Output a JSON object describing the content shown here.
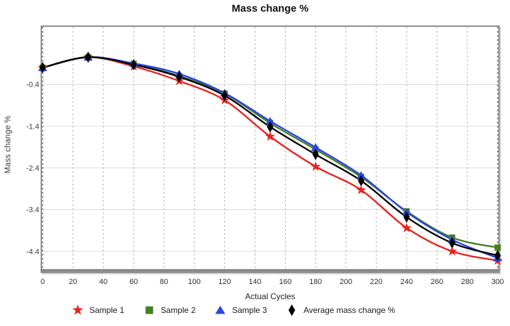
{
  "title": "Mass change %",
  "axes": {
    "x_label": "Actual Cycles",
    "y_label": "Mass change %",
    "x_ticks": [
      0,
      20,
      40,
      60,
      80,
      100,
      120,
      140,
      160,
      180,
      200,
      220,
      240,
      260,
      280,
      300
    ],
    "y_ticks": [
      -0.4,
      -1.4,
      -2.4,
      -3.4,
      -4.4
    ]
  },
  "colors": {
    "sample1": "#e62320",
    "sample2": "#45801e",
    "sample3": "#2a46e5",
    "average": "#000000",
    "h_grid": "#e0e0e0",
    "v_grid": "#ababab",
    "frame": "#8f8f8f",
    "axis_bar": "#8d8d8d"
  },
  "chart_data": {
    "type": "line",
    "title": "Mass change %",
    "xlabel": "Actual Cycles",
    "ylabel": "Mass change %",
    "x": [
      0,
      30,
      60,
      90,
      120,
      150,
      180,
      210,
      240,
      270,
      300
    ],
    "series": [
      {
        "name": "Sample 1",
        "marker": "star",
        "color": "#e62320",
        "values": [
          0.0,
          0.25,
          0.03,
          -0.32,
          -0.78,
          -1.65,
          -2.37,
          -2.93,
          -3.84,
          -4.4,
          -4.62
        ]
      },
      {
        "name": "Sample 2",
        "marker": "square",
        "color": "#45801e",
        "values": [
          0.0,
          0.25,
          0.09,
          -0.2,
          -0.62,
          -1.33,
          -1.96,
          -2.62,
          -3.44,
          -4.07,
          -4.31
        ]
      },
      {
        "name": "Sample 3",
        "marker": "triangle",
        "color": "#2a46e5",
        "values": [
          0.0,
          0.25,
          0.1,
          -0.15,
          -0.61,
          -1.28,
          -1.91,
          -2.58,
          -3.46,
          -4.12,
          -4.56
        ]
      },
      {
        "name": "Average mass change %",
        "marker": "diamond",
        "color": "#000000",
        "values": [
          0.0,
          0.25,
          0.07,
          -0.22,
          -0.67,
          -1.42,
          -2.08,
          -2.71,
          -3.58,
          -4.2,
          -4.5
        ]
      }
    ],
    "xlim": [
      0,
      300
    ],
    "ylim": [
      -4.92,
      1.01
    ],
    "grid": true,
    "legend_position": "bottom"
  }
}
